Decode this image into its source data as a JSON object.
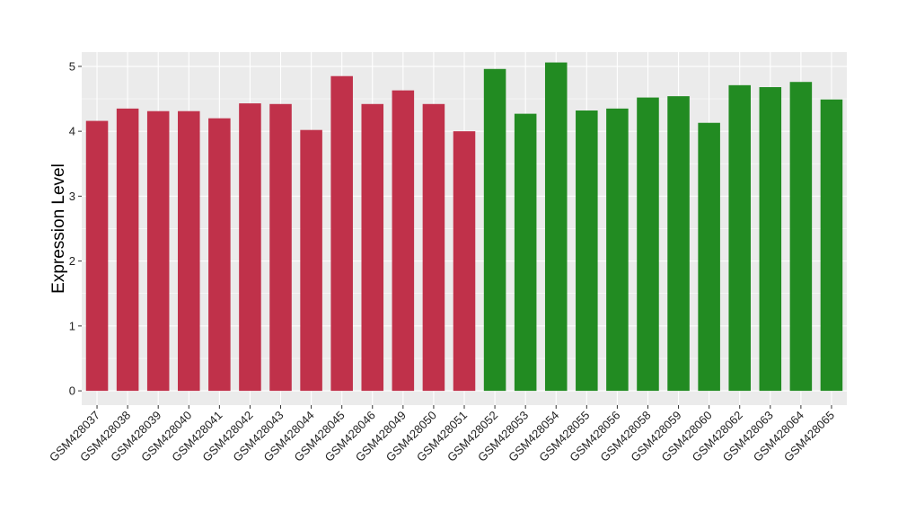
{
  "chart_data": {
    "type": "bar",
    "ylabel": "Expression Level",
    "xlabel": "",
    "ylim": [
      -0.22,
      5.22
    ],
    "y_ticks": [
      0,
      1,
      2,
      3,
      4,
      5
    ],
    "grid": true,
    "legend": "none",
    "categories": [
      "GSM428037",
      "GSM428038",
      "GSM428039",
      "GSM428040",
      "GSM428041",
      "GSM428042",
      "GSM428043",
      "GSM428044",
      "GSM428045",
      "GSM428046",
      "GSM428049",
      "GSM428050",
      "GSM428051",
      "GSM428052",
      "GSM428053",
      "GSM428054",
      "GSM428055",
      "GSM428056",
      "GSM428058",
      "GSM428059",
      "GSM428060",
      "GSM428062",
      "GSM428063",
      "GSM428064",
      "GSM428065"
    ],
    "values": [
      4.16,
      4.35,
      4.31,
      4.31,
      4.2,
      4.43,
      4.42,
      4.02,
      4.85,
      4.42,
      4.63,
      4.42,
      4.0,
      4.96,
      4.27,
      5.06,
      4.32,
      4.35,
      4.52,
      4.54,
      4.13,
      4.71,
      4.68,
      4.76,
      4.49
    ],
    "groups": [
      1,
      1,
      1,
      1,
      1,
      1,
      1,
      1,
      1,
      1,
      1,
      1,
      1,
      2,
      2,
      2,
      2,
      2,
      2,
      2,
      2,
      2,
      2,
      2,
      2
    ],
    "colors": {
      "group1": "#c0314a",
      "group2": "#228b22",
      "panel": "#ebebeb",
      "grid": "#ffffff"
    }
  }
}
